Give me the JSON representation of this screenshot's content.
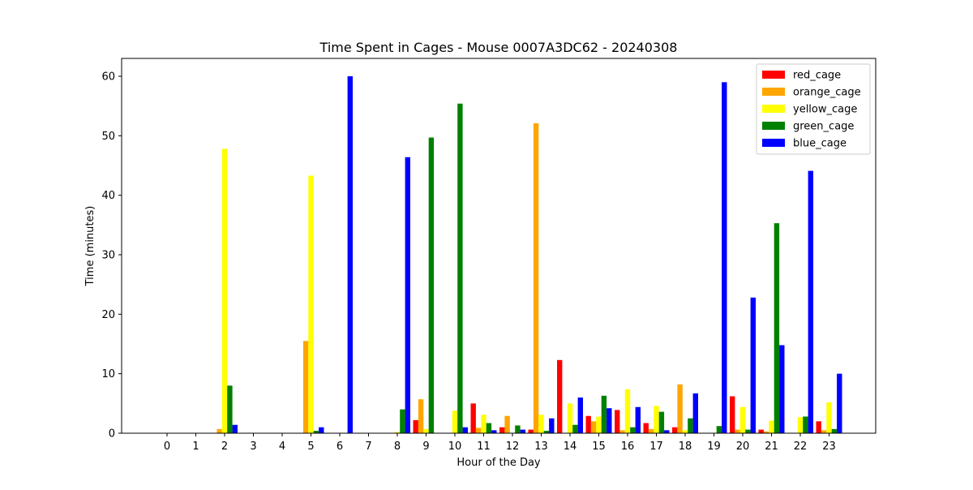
{
  "chart_data": {
    "type": "bar",
    "title": "Time Spent in Cages - Mouse 0007A3DC62 - 20240308",
    "xlabel": "Hour of the Day",
    "ylabel": "Time (minutes)",
    "ylim": [
      0,
      63
    ],
    "yticks": [
      0,
      10,
      20,
      30,
      40,
      50,
      60
    ],
    "legend_position": "top-right",
    "grid": false,
    "categories": [
      "0",
      "1",
      "2",
      "3",
      "4",
      "5",
      "6",
      "7",
      "8",
      "9",
      "10",
      "11",
      "12",
      "13",
      "14",
      "15",
      "16",
      "17",
      "18",
      "19",
      "20",
      "21",
      "22",
      "23"
    ],
    "series": [
      {
        "name": "red_cage",
        "color": "#ff0000",
        "values": [
          0,
          0,
          0,
          0,
          0,
          0,
          0,
          0,
          0,
          2.2,
          0,
          5.0,
          1.0,
          0.6,
          12.3,
          2.9,
          3.9,
          1.7,
          1.0,
          0,
          6.2,
          0.6,
          0,
          2.0
        ]
      },
      {
        "name": "orange_cage",
        "color": "#ffa500",
        "values": [
          0,
          0,
          0.7,
          0,
          0,
          15.5,
          0,
          0,
          0,
          5.7,
          0,
          0.9,
          2.9,
          52.1,
          0,
          2.0,
          0.5,
          0.7,
          8.2,
          0,
          0.6,
          0.3,
          0,
          0.5
        ]
      },
      {
        "name": "yellow_cage",
        "color": "#ffff00",
        "values": [
          0,
          0,
          47.8,
          0,
          0,
          43.3,
          0,
          0,
          0.2,
          0.7,
          3.8,
          3.1,
          0,
          3.1,
          5.0,
          2.8,
          7.4,
          4.6,
          0.5,
          0,
          4.4,
          2.1,
          2.7,
          5.2
        ]
      },
      {
        "name": "green_cage",
        "color": "#008000",
        "values": [
          0,
          0,
          8.0,
          0,
          0,
          0.4,
          0,
          0,
          4.0,
          49.7,
          55.4,
          1.7,
          1.3,
          0.4,
          1.4,
          6.3,
          1.0,
          3.6,
          2.5,
          1.2,
          0.6,
          35.3,
          2.8,
          0.7
        ]
      },
      {
        "name": "blue_cage",
        "color": "#0000ff",
        "values": [
          0,
          0,
          1.4,
          0,
          0,
          1.0,
          60.0,
          0,
          46.4,
          0,
          1.0,
          0.5,
          0.6,
          2.5,
          6.0,
          4.2,
          4.4,
          0.5,
          6.7,
          59.0,
          22.8,
          14.8,
          44.1,
          10.0
        ]
      }
    ]
  }
}
